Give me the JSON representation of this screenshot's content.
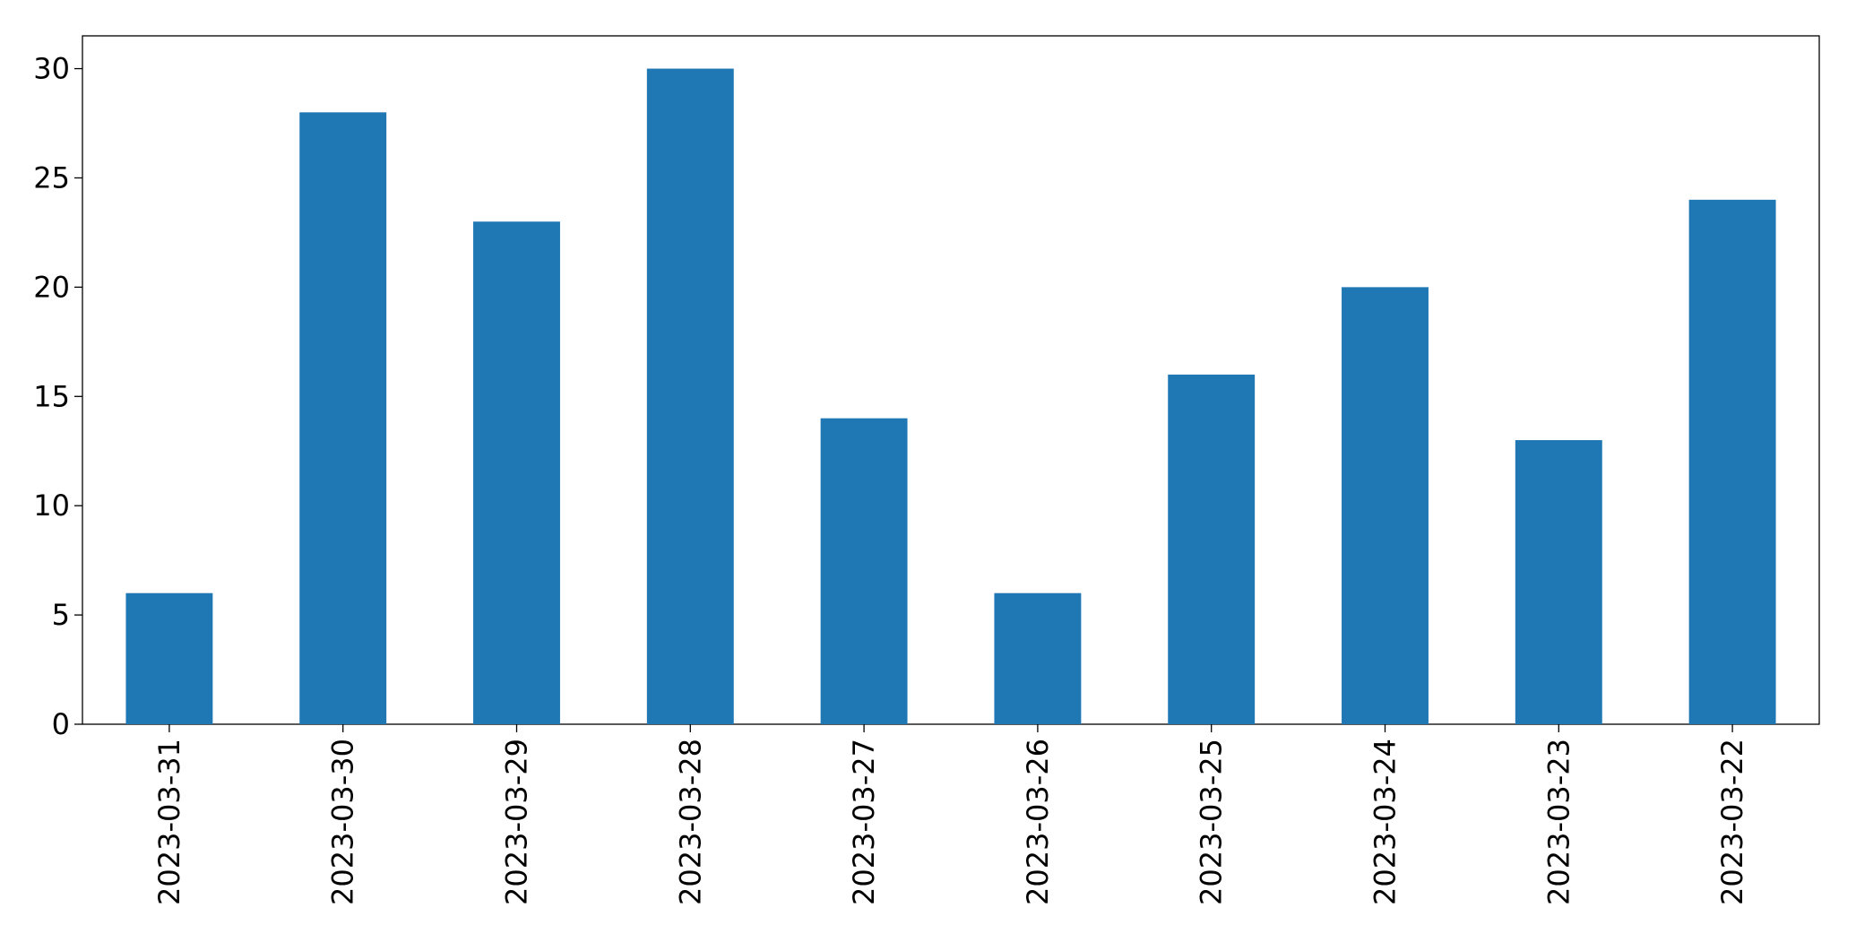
{
  "chart_data": {
    "type": "bar",
    "categories": [
      "2023-03-31",
      "2023-03-30",
      "2023-03-29",
      "2023-03-28",
      "2023-03-27",
      "2023-03-26",
      "2023-03-25",
      "2023-03-24",
      "2023-03-23",
      "2023-03-22"
    ],
    "values": [
      6,
      28,
      23,
      30,
      14,
      6,
      16,
      20,
      13,
      24
    ],
    "color": "#1f77b4",
    "ylim": [
      0,
      31.5
    ],
    "yticks": [
      0,
      5,
      10,
      15,
      20,
      25,
      30
    ],
    "grid": false
  }
}
